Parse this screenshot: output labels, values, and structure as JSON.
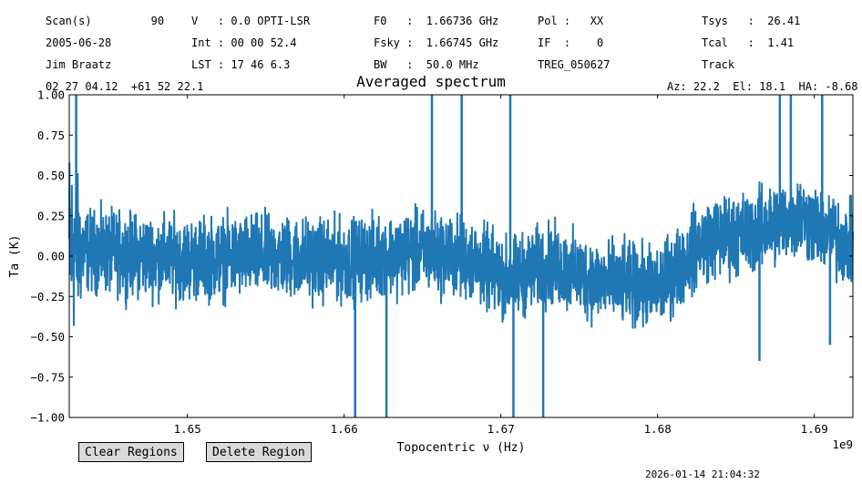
{
  "header": {
    "col1": [
      "Scan(s)         90",
      "2005-06-28",
      "Jim Braatz",
      "02 27 04.12  +61 52 22.1"
    ],
    "col2": [
      "V   : 0.0 OPTI-LSR",
      "Int : 00 00 52.4",
      "LST : 17 46 6.3"
    ],
    "col3": [
      "F0   :  1.66736 GHz",
      "Fsky :  1.66745 GHz",
      "BW   :  50.0 MHz"
    ],
    "col4": [
      "Pol :   XX",
      "IF  :    0",
      "TREG_050627"
    ],
    "col5": [
      "Tsys   :  26.41",
      "Tcal   :  1.41",
      "Track"
    ],
    "azel": "Az: 22.2  El: 18.1  HA: -8.68"
  },
  "buttons": {
    "clear_regions": "Clear Regions",
    "delete_region": "Delete Region"
  },
  "timestamp": "2026-01-14 21:04:32",
  "colors": {
    "line": "#1f77b4",
    "button_bg": "#d9d9d9"
  },
  "chart_data": {
    "type": "line",
    "title": "Averaged spectrum",
    "xlabel": "Topocentric ν (Hz)",
    "ylabel": "Ta (K)",
    "x_offset_label": "1e9",
    "xlim": [
      1642460000.0,
      1692460000.0
    ],
    "ylim": [
      -1.0,
      1.0
    ],
    "xticks": [
      1.65,
      1.66,
      1.67,
      1.68,
      1.69
    ],
    "xtick_labels": [
      "1.65",
      "1.66",
      "1.67",
      "1.68",
      "1.69"
    ],
    "yticks": [
      1.0,
      0.75,
      0.5,
      0.25,
      0.0,
      -0.25,
      -0.5,
      -0.75,
      -1.0
    ],
    "ytick_labels": [
      "1.00",
      "0.75",
      "0.50",
      "0.25",
      "0.00",
      "−0.25",
      "−0.50",
      "−0.75",
      "−1.00"
    ],
    "grid": false,
    "series": [
      {
        "baseline_ghz": [
          1.6425,
          1.645,
          1.65,
          1.655,
          1.66,
          1.665,
          1.668,
          1.6705,
          1.673,
          1.676,
          1.68,
          1.683,
          1.686,
          1.689,
          1.6925
        ],
        "baseline_k": [
          0.05,
          0.02,
          -0.02,
          0.0,
          -0.03,
          0.03,
          -0.02,
          -0.15,
          -0.05,
          -0.15,
          -0.2,
          0.1,
          0.15,
          0.25,
          0.05
        ],
        "noise_amplitude_k": 0.15,
        "spikes_ghz": [
          1.6429,
          1.6607,
          1.6627,
          1.6656,
          1.6675,
          1.6706,
          1.6708,
          1.6727,
          1.6865,
          1.6878,
          1.6885,
          1.6905,
          1.691
        ],
        "spikes_k": [
          1.0,
          -1.0,
          -1.0,
          1.0,
          1.0,
          1.0,
          -1.0,
          -1.0,
          -0.65,
          1.0,
          1.0,
          1.0,
          -0.55
        ]
      }
    ]
  }
}
